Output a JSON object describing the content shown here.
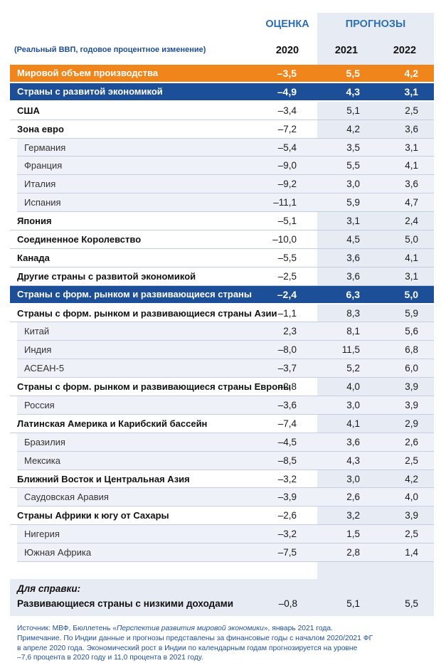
{
  "headers": {
    "estimate": "ОЦЕНКА",
    "forecasts": "ПРОГНОЗЫ",
    "subtitle": "(Реальный ВВП, годовое процентное изменение)",
    "years": [
      "2020",
      "2021",
      "2022"
    ]
  },
  "rows": [
    {
      "name": "Мировой объем производства",
      "values": [
        "–3,5",
        "5,5",
        "4,2"
      ],
      "style": "world"
    },
    {
      "name": "Страны с развитой экономикой",
      "values": [
        "–4,9",
        "4,3",
        "3,1"
      ],
      "style": "adv"
    },
    {
      "name": "США",
      "values": [
        "–3,4",
        "5,1",
        "2,5"
      ],
      "style": "main"
    },
    {
      "name": "Зона евро",
      "values": [
        "–7,2",
        "4,2",
        "3,6"
      ],
      "style": "main"
    },
    {
      "name": "Германия",
      "values": [
        "–5,4",
        "3,5",
        "3,1"
      ],
      "style": "sub"
    },
    {
      "name": "Франция",
      "values": [
        "–9,0",
        "5,5",
        "4,1"
      ],
      "style": "sub"
    },
    {
      "name": "Италия",
      "values": [
        "–9,2",
        "3,0",
        "3,6"
      ],
      "style": "sub"
    },
    {
      "name": "Испания",
      "values": [
        "–11,1",
        "5,9",
        "4,7"
      ],
      "style": "sub"
    },
    {
      "name": "Япония",
      "values": [
        "–5,1",
        "3,1",
        "2,4"
      ],
      "style": "main"
    },
    {
      "name": "Соединенное Королевство",
      "values": [
        "–10,0",
        "4,5",
        "5,0"
      ],
      "style": "main"
    },
    {
      "name": "Канада",
      "values": [
        "–5,5",
        "3,6",
        "4,1"
      ],
      "style": "main"
    },
    {
      "name": "Другие страны с развитой экономикой",
      "values": [
        "–2,5",
        "3,6",
        "3,1"
      ],
      "style": "main"
    },
    {
      "name": "Страны с форм. рынком и развивающиеся страны",
      "values": [
        "–2,4",
        "6,3",
        "5,0"
      ],
      "style": "adv"
    },
    {
      "name": "Страны с форм. рынком и развивающиеся страны Азии",
      "values": [
        "–1,1",
        "8,3",
        "5,9"
      ],
      "style": "main"
    },
    {
      "name": "Китай",
      "values": [
        "2,3",
        "8,1",
        "5,6"
      ],
      "style": "sub"
    },
    {
      "name": "Индия",
      "values": [
        "–8,0",
        "11,5",
        "6,8"
      ],
      "style": "sub"
    },
    {
      "name": "АСЕАН-5",
      "values": [
        "–3,7",
        "5,2",
        "6,0"
      ],
      "style": "sub"
    },
    {
      "name": "Страны с форм. рынком и развивающиеся страны Европы",
      "values": [
        "–2,8",
        "4,0",
        "3,9"
      ],
      "style": "main"
    },
    {
      "name": "Россия",
      "values": [
        "–3,6",
        "3,0",
        "3,9"
      ],
      "style": "sub"
    },
    {
      "name": "Латинская Америка и Карибский бассейн",
      "values": [
        "–7,4",
        "4,1",
        "2,9"
      ],
      "style": "main"
    },
    {
      "name": "Бразилия",
      "values": [
        "–4,5",
        "3,6",
        "2,6"
      ],
      "style": "sub"
    },
    {
      "name": "Мексика",
      "values": [
        "–8,5",
        "4,3",
        "2,5"
      ],
      "style": "sub"
    },
    {
      "name": "Ближний Восток и Центральная Азия",
      "values": [
        "–3,2",
        "3,0",
        "4,2"
      ],
      "style": "main"
    },
    {
      "name": "Саудовская Аравия",
      "values": [
        "–3,9",
        "2,6",
        "4,0"
      ],
      "style": "sub"
    },
    {
      "name": "Страны Африки к югу от Сахары",
      "values": [
        "–2,6",
        "3,2",
        "3,9"
      ],
      "style": "main"
    },
    {
      "name": "Нигерия",
      "values": [
        "–3,2",
        "1,5",
        "2,5"
      ],
      "style": "sub"
    },
    {
      "name": "Южная Африка",
      "values": [
        "–7,5",
        "2,8",
        "1,4"
      ],
      "style": "sub"
    }
  ],
  "reference": {
    "title": "Для справки:",
    "name": "Развивающиеся страны с низкими доходами",
    "values": [
      "–0,8",
      "5,1",
      "5,5"
    ]
  },
  "source": {
    "line1_prefix": "Источник: МВФ, Бюллетень «",
    "line1_title": "Перспектив развития мировой экономики",
    "line1_suffix": "», январь 2021 года.",
    "line2": "Примечание. По Индии данные и прогнозы представлены за финансовые годы с началом 2020/2021 ФГ",
    "line3": "в апреле 2020 года. Экономический рост в Индии по календарным годам прогнозируется на уровне",
    "line4": "–7,6 процента в 2020 году и 11,0 процента в 2021 году."
  },
  "colors": {
    "world_row": "#f0851b",
    "advanced_row": "#1d4f98",
    "header_blue": "#2c6fb5",
    "projection_bg": "#e7ecf4"
  }
}
